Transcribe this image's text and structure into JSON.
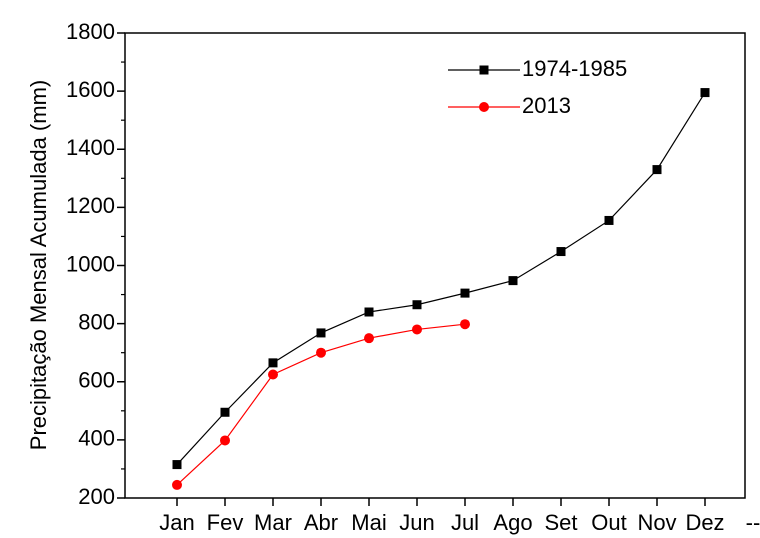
{
  "chart_data": {
    "type": "line",
    "y_label": "Precipitação Mensal Acumulada (mm)",
    "categories": [
      "Jan",
      "Fev",
      "Mar",
      "Abr",
      "Mai",
      "Jun",
      "Jul",
      "Ago",
      "Set",
      "Out",
      "Nov",
      "Dez",
      "--"
    ],
    "series": [
      {
        "name": "1974-1985",
        "color": "#000000",
        "marker": "square",
        "values": [
          315,
          495,
          665,
          768,
          840,
          865,
          905,
          948,
          1048,
          1155,
          1330,
          1595,
          null
        ]
      },
      {
        "name": "2013",
        "color": "#ff0000",
        "marker": "circle",
        "values": [
          245,
          398,
          625,
          700,
          750,
          780,
          798,
          null,
          null,
          null,
          null,
          null,
          null
        ]
      }
    ],
    "ylim": [
      200,
      1800
    ],
    "yticks": [
      200,
      400,
      600,
      800,
      1000,
      1200,
      1400,
      1600,
      1800
    ],
    "y_minor_ticks": [
      300,
      500,
      700,
      900,
      1100,
      1300,
      1500,
      1700
    ],
    "legend": "upper right"
  }
}
